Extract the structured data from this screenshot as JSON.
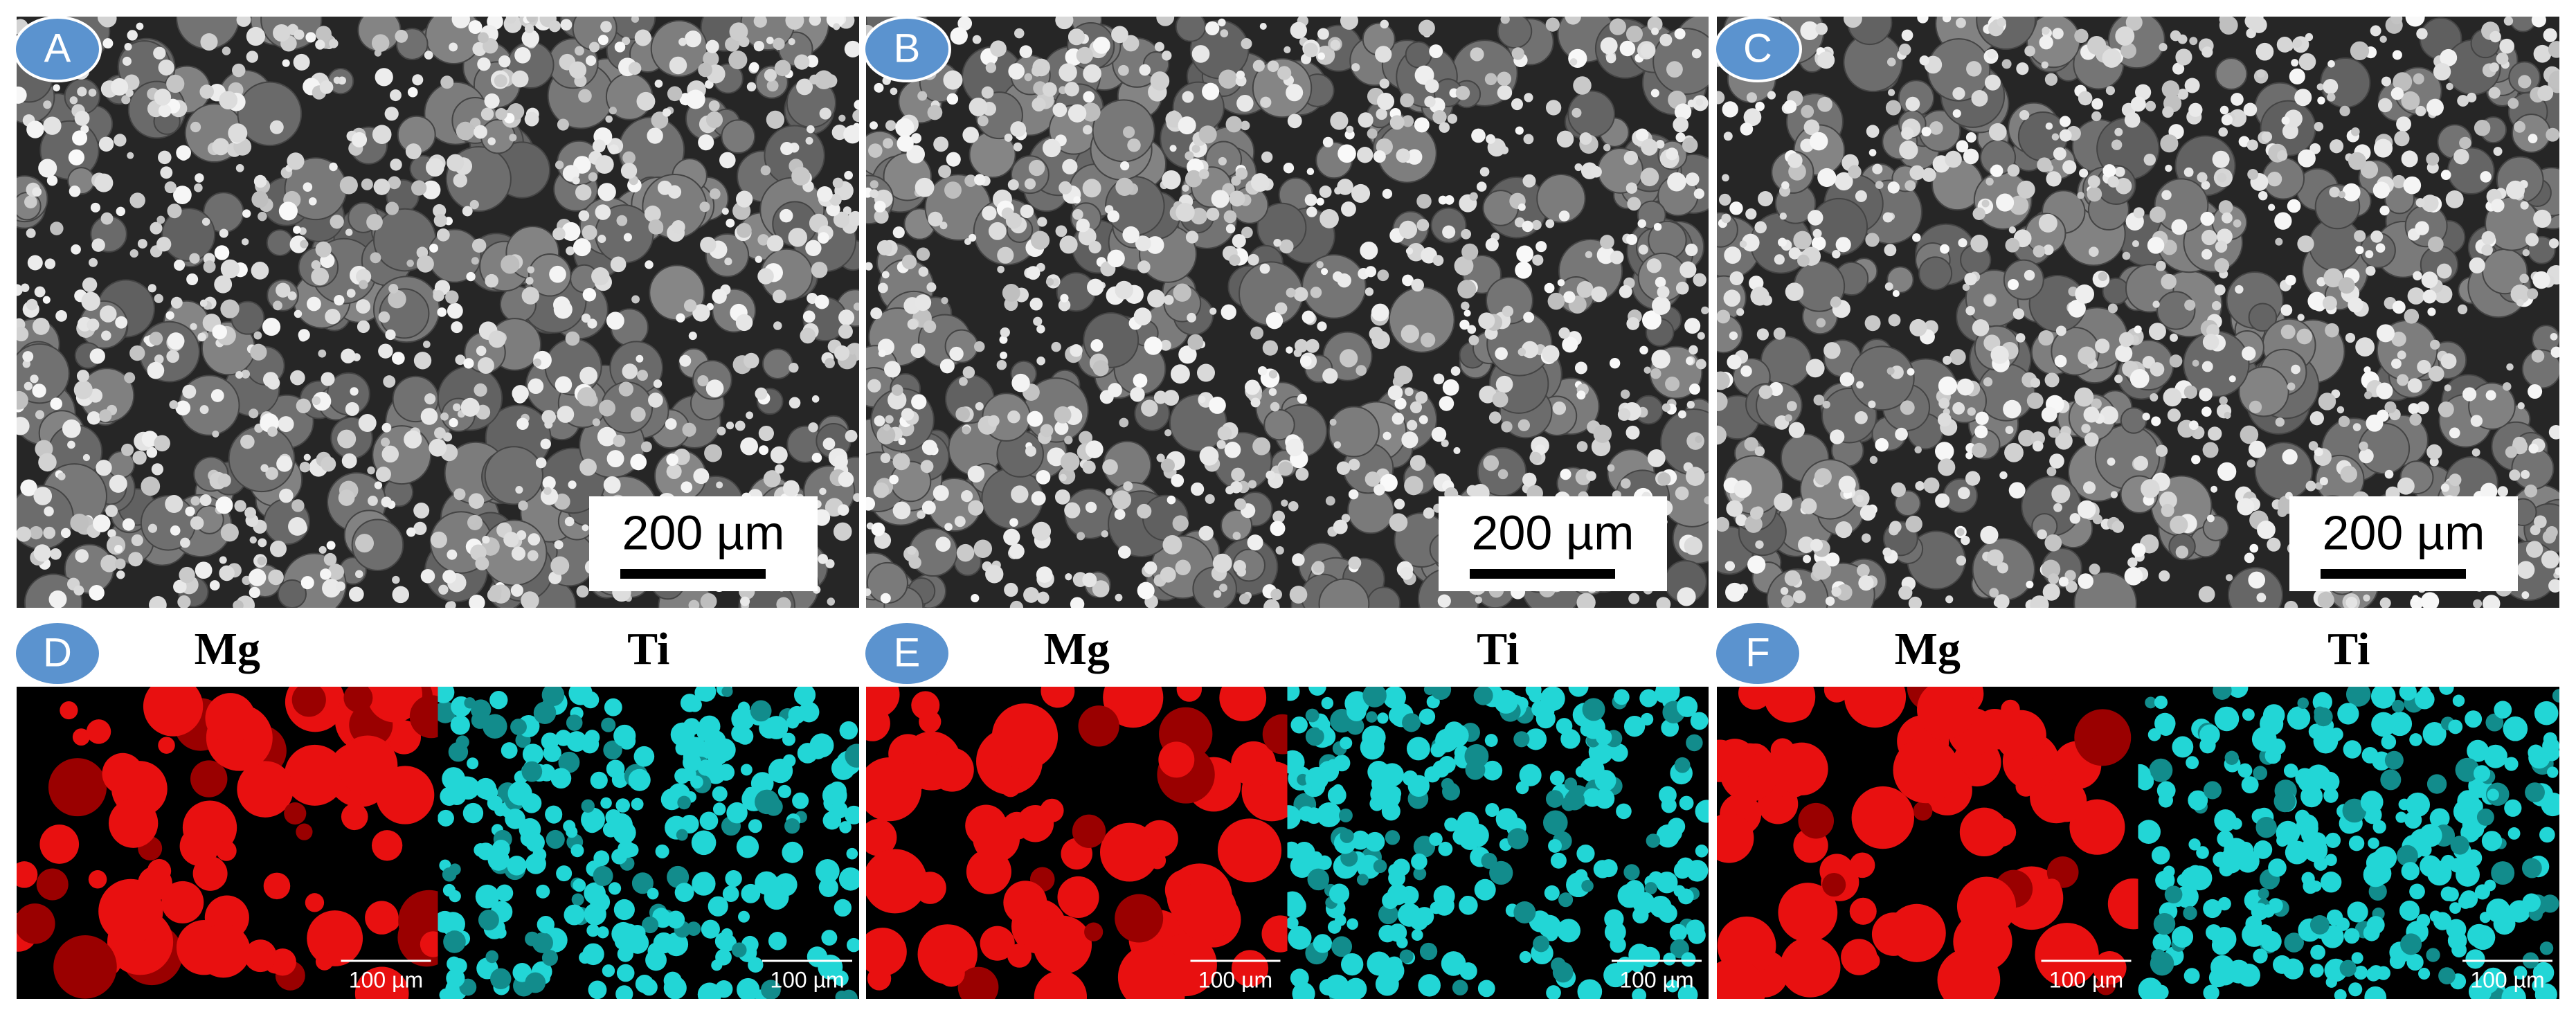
{
  "panels": [
    {
      "label": "A",
      "scale_bar": "200 µm"
    },
    {
      "label": "B",
      "scale_bar": "200 µm"
    },
    {
      "label": "C",
      "scale_bar": "200 µm"
    }
  ],
  "maps": [
    {
      "label": "D",
      "images": [
        {
          "element": "Mg",
          "scale_bar": "100 µm"
        },
        {
          "element": "Ti",
          "scale_bar": "100 µm"
        }
      ]
    },
    {
      "label": "E",
      "images": [
        {
          "element": "Mg",
          "scale_bar": "100 µm"
        },
        {
          "element": "Ti",
          "scale_bar": "100 µm"
        }
      ]
    },
    {
      "label": "F",
      "images": [
        {
          "element": "Mg",
          "scale_bar": "100 µm"
        },
        {
          "element": "Ti",
          "scale_bar": "100 µm"
        }
      ]
    }
  ]
}
